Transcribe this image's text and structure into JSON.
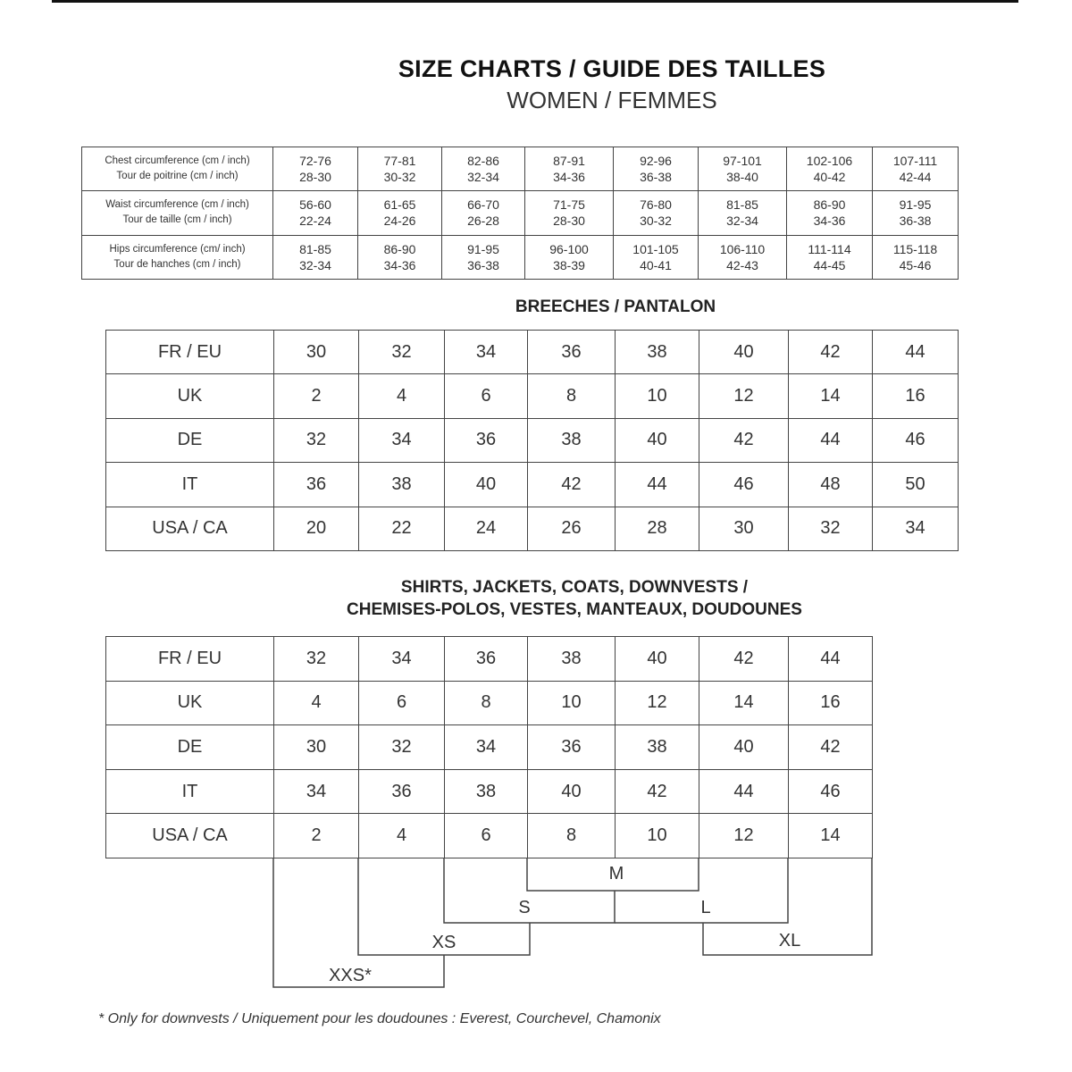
{
  "title": "SIZE CHARTS / GUIDE DES TAILLES",
  "subtitle": "WOMEN / FEMMES",
  "measurements": {
    "rows": [
      {
        "label_en": "Chest circumference (cm / inch)",
        "label_fr": "Tour de poitrine (cm / inch)",
        "cells": [
          [
            "72-76",
            "28-30"
          ],
          [
            "77-81",
            "30-32"
          ],
          [
            "82-86",
            "32-34"
          ],
          [
            "87-91",
            "34-36"
          ],
          [
            "92-96",
            "36-38"
          ],
          [
            "97-101",
            "38-40"
          ],
          [
            "102-106",
            "40-42"
          ],
          [
            "107-111",
            "42-44"
          ]
        ]
      },
      {
        "label_en": "Waist circumference (cm / inch)",
        "label_fr": "Tour de taille (cm / inch)",
        "cells": [
          [
            "56-60",
            "22-24"
          ],
          [
            "61-65",
            "24-26"
          ],
          [
            "66-70",
            "26-28"
          ],
          [
            "71-75",
            "28-30"
          ],
          [
            "76-80",
            "30-32"
          ],
          [
            "81-85",
            "32-34"
          ],
          [
            "86-90",
            "34-36"
          ],
          [
            "91-95",
            "36-38"
          ]
        ]
      },
      {
        "label_en": "Hips circumference (cm/ inch)",
        "label_fr": "Tour de hanches (cm / inch)",
        "cells": [
          [
            "81-85",
            "32-34"
          ],
          [
            "86-90",
            "34-36"
          ],
          [
            "91-95",
            "36-38"
          ],
          [
            "96-100",
            "38-39"
          ],
          [
            "101-105",
            "40-41"
          ],
          [
            "106-110",
            "42-43"
          ],
          [
            "111-114",
            "44-45"
          ],
          [
            "115-118",
            "45-46"
          ]
        ]
      }
    ]
  },
  "breeches": {
    "heading": "BREECHES / PANTALON",
    "rows": [
      {
        "label": "FR / EU",
        "values": [
          "30",
          "32",
          "34",
          "36",
          "38",
          "40",
          "42",
          "44"
        ]
      },
      {
        "label": "UK",
        "values": [
          "2",
          "4",
          "6",
          "8",
          "10",
          "12",
          "14",
          "16"
        ]
      },
      {
        "label": "DE",
        "values": [
          "32",
          "34",
          "36",
          "38",
          "40",
          "42",
          "44",
          "46"
        ]
      },
      {
        "label": "IT",
        "values": [
          "36",
          "38",
          "40",
          "42",
          "44",
          "46",
          "48",
          "50"
        ]
      },
      {
        "label": "USA / CA",
        "values": [
          "20",
          "22",
          "24",
          "26",
          "28",
          "30",
          "32",
          "34"
        ]
      }
    ]
  },
  "shirts": {
    "heading_line1": "SHIRTS, JACKETS, COATS, DOWNVESTS /",
    "heading_line2": "CHEMISES-POLOS, VESTES, MANTEAUX, DOUDOUNES",
    "rows": [
      {
        "label": "FR / EU",
        "values": [
          "32",
          "34",
          "36",
          "38",
          "40",
          "42",
          "44"
        ]
      },
      {
        "label": "UK",
        "values": [
          "4",
          "6",
          "8",
          "10",
          "12",
          "14",
          "16"
        ]
      },
      {
        "label": "DE",
        "values": [
          "30",
          "32",
          "34",
          "36",
          "38",
          "40",
          "42"
        ]
      },
      {
        "label": "IT",
        "values": [
          "34",
          "36",
          "38",
          "40",
          "42",
          "44",
          "46"
        ]
      },
      {
        "label": "USA / CA",
        "values": [
          "2",
          "4",
          "6",
          "8",
          "10",
          "12",
          "14"
        ]
      }
    ],
    "letter_sizes": [
      "XXS*",
      "XS",
      "S",
      "M",
      "L",
      "XL"
    ]
  },
  "footnote": "* Only for downvests / Uniquement pour les doudounes : Everest, Courchevel, Chamonix"
}
